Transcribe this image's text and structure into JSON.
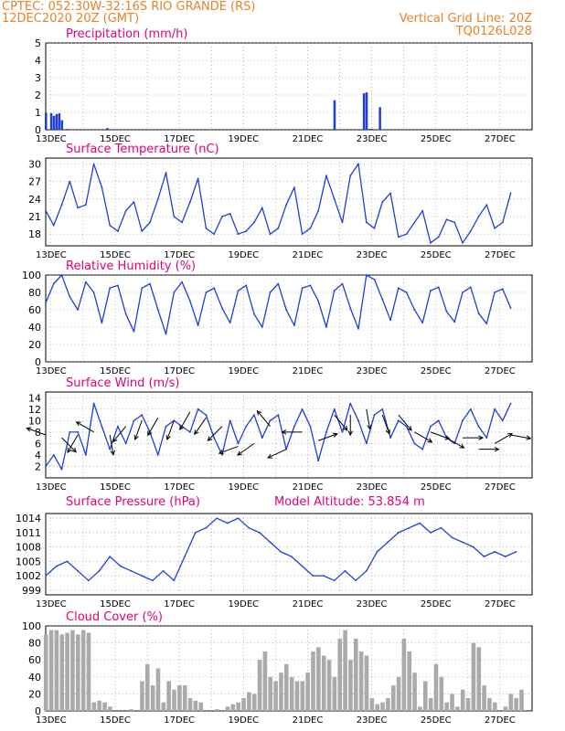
{
  "header": {
    "line1": "CPTEC:    052:30W-32:16S   RIO GRANDE (RS)",
    "line2": "12DEC2020 20Z (GMT)",
    "grid_info": "Vertical Grid Line: 20Z",
    "code": "TQ0126L028"
  },
  "colors": {
    "header": "#e8822a",
    "title": "#e0007a",
    "series": "#1f3fd9",
    "cloud": "#aaaaaa",
    "wind_arrow": "#000000"
  },
  "x_axis": {
    "ticks": [
      {
        "label": "13DEC",
        "day": 13
      },
      {
        "label": "15DEC",
        "day": 15
      },
      {
        "label": "17DEC",
        "day": 17
      },
      {
        "label": "19DEC",
        "day": 19
      },
      {
        "label": "21DEC",
        "day": 21
      },
      {
        "label": "23DEC",
        "day": 23
      },
      {
        "label": "25DEC",
        "day": 25
      },
      {
        "label": "27DEC",
        "day": 27
      }
    ],
    "start_day": 12.833,
    "end_day": 28.0
  },
  "chart_data": [
    {
      "id": "precip",
      "type": "bar",
      "title": "Precipitation (mm/h)",
      "ylim": [
        0,
        5
      ],
      "yticks": [
        0,
        1,
        2,
        3,
        4,
        5
      ],
      "grid": true,
      "x": [
        "12DEC20Z",
        "13DEC00Z",
        "13DEC02Z",
        "13DEC04Z",
        "13DEC06Z",
        "13DEC08Z",
        "13DEC12Z",
        "14DEC18Z",
        "21DEC20Z",
        "22DEC18Z",
        "22DEC20Z",
        "22DEC22Z",
        "23DEC00Z",
        "23DEC06Z"
      ],
      "values": [
        1.0,
        0.95,
        0.8,
        0.9,
        0.95,
        0.55,
        0.05,
        0.1,
        1.7,
        2.1,
        2.15,
        0.05,
        0.05,
        1.3
      ]
    },
    {
      "id": "temp",
      "type": "line",
      "title": "Surface Temperature (nC)",
      "ylim": [
        16,
        31
      ],
      "yticks": [
        18,
        21,
        24,
        27,
        30
      ],
      "grid": true,
      "x": [
        "12DEC20Z",
        "13DEC02Z",
        "13DEC08Z",
        "13DEC14Z",
        "13DEC20Z",
        "14DEC02Z",
        "14DEC08Z",
        "14DEC14Z",
        "14DEC20Z",
        "15DEC02Z",
        "15DEC08Z",
        "15DEC14Z",
        "15DEC20Z",
        "16DEC02Z",
        "16DEC08Z",
        "16DEC14Z",
        "16DEC20Z",
        "17DEC02Z",
        "17DEC08Z",
        "17DEC14Z",
        "17DEC20Z",
        "18DEC02Z",
        "18DEC08Z",
        "18DEC14Z",
        "18DEC20Z",
        "19DEC02Z",
        "19DEC08Z",
        "19DEC14Z",
        "19DEC20Z",
        "20DEC02Z",
        "20DEC08Z",
        "20DEC14Z",
        "20DEC20Z",
        "21DEC02Z",
        "21DEC08Z",
        "21DEC14Z",
        "21DEC20Z",
        "22DEC02Z",
        "22DEC08Z",
        "22DEC14Z",
        "22DEC20Z",
        "23DEC02Z",
        "23DEC08Z",
        "23DEC14Z",
        "23DEC20Z",
        "24DEC02Z",
        "24DEC08Z",
        "24DEC14Z",
        "24DEC20Z",
        "25DEC02Z",
        "25DEC08Z",
        "25DEC14Z",
        "25DEC20Z",
        "26DEC02Z",
        "26DEC08Z",
        "26DEC14Z",
        "26DEC20Z",
        "27DEC02Z",
        "27DEC08Z"
      ],
      "values": [
        22,
        19.5,
        23,
        27,
        22.5,
        23,
        30,
        26,
        19.5,
        18.5,
        22,
        23.5,
        18.5,
        20,
        24,
        28.5,
        21,
        20,
        23.5,
        27.5,
        19,
        18,
        21,
        21.5,
        18,
        18.5,
        20,
        22.5,
        18,
        19,
        23,
        26,
        18,
        19,
        22,
        28,
        24,
        20,
        28,
        30,
        20,
        19,
        23.5,
        25,
        17.5,
        18,
        20,
        22,
        16.5,
        17.5,
        20.5,
        20,
        16.5,
        18.5,
        21,
        23,
        19,
        20,
        25
      ]
    },
    {
      "id": "rh",
      "type": "line",
      "title": "Relative Humidity (%)",
      "ylim": [
        0,
        100
      ],
      "yticks": [
        0,
        20,
        40,
        60,
        80,
        100
      ],
      "grid": true,
      "x": [
        "12DEC20Z",
        "13DEC02Z",
        "13DEC08Z",
        "13DEC14Z",
        "13DEC20Z",
        "14DEC02Z",
        "14DEC08Z",
        "14DEC14Z",
        "14DEC20Z",
        "15DEC02Z",
        "15DEC08Z",
        "15DEC14Z",
        "15DEC20Z",
        "16DEC02Z",
        "16DEC08Z",
        "16DEC14Z",
        "16DEC20Z",
        "17DEC02Z",
        "17DEC08Z",
        "17DEC14Z",
        "17DEC20Z",
        "18DEC02Z",
        "18DEC08Z",
        "18DEC14Z",
        "18DEC20Z",
        "19DEC02Z",
        "19DEC08Z",
        "19DEC14Z",
        "19DEC20Z",
        "20DEC02Z",
        "20DEC08Z",
        "20DEC14Z",
        "20DEC20Z",
        "21DEC02Z",
        "21DEC08Z",
        "21DEC14Z",
        "21DEC20Z",
        "22DEC02Z",
        "22DEC08Z",
        "22DEC14Z",
        "22DEC20Z",
        "23DEC02Z",
        "23DEC08Z",
        "23DEC14Z",
        "23DEC20Z",
        "24DEC02Z",
        "24DEC08Z",
        "24DEC14Z",
        "24DEC20Z",
        "25DEC02Z",
        "25DEC08Z",
        "25DEC14Z",
        "25DEC20Z",
        "26DEC02Z",
        "26DEC08Z",
        "26DEC14Z",
        "26DEC20Z",
        "27DEC02Z",
        "27DEC08Z"
      ],
      "values": [
        68,
        90,
        100,
        75,
        60,
        92,
        80,
        45,
        85,
        88,
        55,
        35,
        85,
        90,
        60,
        32,
        80,
        92,
        70,
        42,
        80,
        85,
        62,
        45,
        82,
        88,
        55,
        40,
        80,
        90,
        60,
        42,
        85,
        88,
        70,
        40,
        82,
        90,
        62,
        38,
        100,
        95,
        72,
        48,
        85,
        80,
        60,
        45,
        82,
        86,
        58,
        46,
        80,
        86,
        56,
        44,
        80,
        84,
        62
      ]
    },
    {
      "id": "wind",
      "type": "line",
      "title": "Surface Wind (m/s)",
      "ylim": [
        0,
        15
      ],
      "yticks": [
        2,
        4,
        6,
        8,
        10,
        12,
        14
      ],
      "grid": true,
      "x": [
        "12DEC20Z",
        "13DEC02Z",
        "13DEC08Z",
        "13DEC14Z",
        "13DEC20Z",
        "14DEC02Z",
        "14DEC08Z",
        "14DEC14Z",
        "14DEC20Z",
        "15DEC02Z",
        "15DEC08Z",
        "15DEC14Z",
        "15DEC20Z",
        "16DEC02Z",
        "16DEC08Z",
        "16DEC14Z",
        "16DEC20Z",
        "17DEC02Z",
        "17DEC08Z",
        "17DEC14Z",
        "17DEC20Z",
        "18DEC02Z",
        "18DEC08Z",
        "18DEC14Z",
        "18DEC20Z",
        "19DEC02Z",
        "19DEC08Z",
        "19DEC14Z",
        "19DEC20Z",
        "20DEC02Z",
        "20DEC08Z",
        "20DEC14Z",
        "20DEC20Z",
        "21DEC02Z",
        "21DEC08Z",
        "21DEC14Z",
        "21DEC20Z",
        "22DEC02Z",
        "22DEC08Z",
        "22DEC14Z",
        "22DEC20Z",
        "23DEC02Z",
        "23DEC08Z",
        "23DEC14Z",
        "23DEC20Z",
        "24DEC02Z",
        "24DEC08Z",
        "24DEC14Z",
        "24DEC20Z",
        "25DEC02Z",
        "25DEC08Z",
        "25DEC14Z",
        "25DEC20Z",
        "26DEC02Z",
        "26DEC08Z",
        "26DEC14Z",
        "26DEC20Z",
        "27DEC02Z",
        "27DEC08Z"
      ],
      "values": [
        2,
        4,
        1.5,
        8,
        8,
        4,
        13,
        9,
        5,
        9,
        6,
        10,
        11,
        8,
        4,
        9,
        10,
        9,
        8,
        12,
        11,
        7,
        4,
        10,
        6,
        9,
        11,
        7,
        10,
        11,
        5,
        9,
        12,
        9,
        3,
        8,
        12,
        8,
        13,
        10,
        6,
        11,
        12,
        7,
        10,
        9,
        6,
        5,
        9,
        10,
        7,
        6,
        10,
        12,
        9,
        7,
        12,
        10,
        13
      ]
    },
    {
      "id": "pressure",
      "type": "line",
      "title": "Surface Pressure (hPa)",
      "annotation": "Model Altitude: 53.854 m",
      "ylim": [
        998,
        1015
      ],
      "yticks": [
        999,
        1002,
        1005,
        1008,
        1011,
        1014
      ],
      "ytick_labels": [
        "999",
        "1002",
        "1005",
        "1008",
        "1011",
        "1014"
      ],
      "grid": true,
      "x": [
        "12DEC20Z",
        "13DEC04Z",
        "13DEC12Z",
        "13DEC20Z",
        "14DEC04Z",
        "14DEC12Z",
        "14DEC20Z",
        "15DEC04Z",
        "15DEC12Z",
        "15DEC20Z",
        "16DEC04Z",
        "16DEC12Z",
        "16DEC20Z",
        "17DEC04Z",
        "17DEC12Z",
        "17DEC20Z",
        "18DEC04Z",
        "18DEC12Z",
        "18DEC20Z",
        "19DEC04Z",
        "19DEC12Z",
        "19DEC20Z",
        "20DEC04Z",
        "20DEC12Z",
        "20DEC20Z",
        "21DEC04Z",
        "21DEC12Z",
        "21DEC20Z",
        "22DEC04Z",
        "22DEC12Z",
        "22DEC20Z",
        "23DEC04Z",
        "23DEC12Z",
        "23DEC20Z",
        "24DEC04Z",
        "24DEC12Z",
        "24DEC20Z",
        "25DEC04Z",
        "25DEC12Z",
        "25DEC20Z",
        "26DEC04Z",
        "26DEC12Z",
        "26DEC20Z",
        "27DEC04Z",
        "27DEC12Z"
      ],
      "values": [
        1002,
        1004,
        1005,
        1003,
        1001,
        1003,
        1006,
        1004,
        1003,
        1002,
        1001,
        1003,
        1001,
        1006,
        1011,
        1012,
        1014,
        1013,
        1014,
        1012,
        1011,
        1009,
        1007,
        1006,
        1004,
        1002,
        1002,
        1001,
        1003,
        1001,
        1003,
        1007,
        1009,
        1011,
        1012,
        1013,
        1011,
        1012,
        1010,
        1009,
        1008,
        1006,
        1007,
        1006,
        1007
      ]
    },
    {
      "id": "cloud",
      "type": "area",
      "title": "Cloud Cover (%)",
      "ylim": [
        0,
        100
      ],
      "yticks": [
        0,
        20,
        40,
        60,
        80,
        100
      ],
      "grid": true,
      "x": [
        "12DEC20Z",
        "13DEC00Z",
        "13DEC04Z",
        "13DEC08Z",
        "13DEC12Z",
        "13DEC16Z",
        "13DEC20Z",
        "14DEC00Z",
        "14DEC04Z",
        "14DEC08Z",
        "14DEC12Z",
        "14DEC16Z",
        "14DEC20Z",
        "15DEC00Z",
        "15DEC04Z",
        "15DEC08Z",
        "15DEC12Z",
        "15DEC16Z",
        "15DEC20Z",
        "16DEC00Z",
        "16DEC04Z",
        "16DEC08Z",
        "16DEC12Z",
        "16DEC16Z",
        "16DEC20Z",
        "17DEC00Z",
        "17DEC04Z",
        "17DEC08Z",
        "17DEC12Z",
        "17DEC16Z",
        "17DEC20Z",
        "18DEC00Z",
        "18DEC04Z",
        "18DEC08Z",
        "18DEC12Z",
        "18DEC16Z",
        "18DEC20Z",
        "19DEC00Z",
        "19DEC04Z",
        "19DEC08Z",
        "19DEC12Z",
        "19DEC16Z",
        "19DEC20Z",
        "20DEC00Z",
        "20DEC04Z",
        "20DEC08Z",
        "20DEC12Z",
        "20DEC16Z",
        "20DEC20Z",
        "21DEC00Z",
        "21DEC04Z",
        "21DEC08Z",
        "21DEC12Z",
        "21DEC16Z",
        "21DEC20Z",
        "22DEC00Z",
        "22DEC04Z",
        "22DEC08Z",
        "22DEC12Z",
        "22DEC16Z",
        "22DEC20Z",
        "23DEC00Z",
        "23DEC04Z",
        "23DEC08Z",
        "23DEC12Z",
        "23DEC16Z",
        "23DEC20Z",
        "24DEC00Z",
        "24DEC04Z",
        "24DEC08Z",
        "24DEC12Z",
        "24DEC16Z",
        "24DEC20Z",
        "25DEC00Z",
        "25DEC04Z",
        "25DEC08Z",
        "25DEC12Z",
        "25DEC16Z",
        "25DEC20Z",
        "26DEC00Z",
        "26DEC04Z",
        "26DEC08Z",
        "26DEC12Z",
        "26DEC16Z",
        "26DEC20Z",
        "27DEC00Z",
        "27DEC04Z",
        "27DEC08Z",
        "27DEC12Z",
        "27DEC16Z"
      ],
      "values": [
        90,
        95,
        95,
        90,
        92,
        95,
        90,
        95,
        92,
        10,
        12,
        10,
        5,
        0,
        0,
        0,
        2,
        0,
        35,
        55,
        30,
        50,
        10,
        35,
        25,
        30,
        30,
        15,
        12,
        10,
        0,
        0,
        2,
        0,
        5,
        8,
        10,
        15,
        22,
        20,
        60,
        70,
        40,
        35,
        45,
        55,
        40,
        35,
        35,
        45,
        70,
        75,
        65,
        60,
        40,
        85,
        95,
        60,
        85,
        70,
        65,
        15,
        8,
        10,
        15,
        30,
        40,
        85,
        70,
        45,
        5,
        35,
        15,
        55,
        40,
        10,
        20,
        5,
        25,
        15,
        80,
        75,
        30,
        15,
        10,
        0,
        5,
        20,
        15,
        25
      ]
    },
    {
      "id": "wind_vectors",
      "type": "vector",
      "units": "m/s",
      "x": [
        "12DEC20Z",
        "13DEC08Z",
        "13DEC20Z",
        "14DEC08Z",
        "14DEC20Z",
        "15DEC08Z",
        "15DEC20Z",
        "16DEC08Z",
        "16DEC20Z",
        "17DEC08Z",
        "17DEC20Z",
        "18DEC08Z",
        "18DEC20Z",
        "19DEC08Z",
        "19DEC20Z",
        "20DEC08Z",
        "20DEC20Z",
        "21DEC08Z",
        "21DEC20Z",
        "22DEC08Z",
        "22DEC20Z",
        "23DEC08Z",
        "23DEC20Z",
        "24DEC08Z",
        "24DEC20Z",
        "25DEC08Z",
        "25DEC20Z",
        "26DEC08Z",
        "26DEC20Z",
        "27DEC08Z"
      ],
      "speed": [
        7.5,
        7,
        7.5,
        8,
        7.5,
        9,
        10,
        10.5,
        10,
        11.5,
        10.5,
        9,
        5.5,
        6,
        9,
        5,
        8,
        6.5,
        11,
        11,
        12,
        11,
        11,
        8,
        8,
        7,
        7,
        5,
        6,
        7.5
      ],
      "dir_deg": [
        290,
        135,
        210,
        300,
        170,
        220,
        200,
        210,
        200,
        210,
        215,
        225,
        250,
        235,
        320,
        245,
        270,
        70,
        140,
        180,
        170,
        160,
        140,
        120,
        110,
        120,
        90,
        90,
        60,
        100
      ]
    }
  ]
}
